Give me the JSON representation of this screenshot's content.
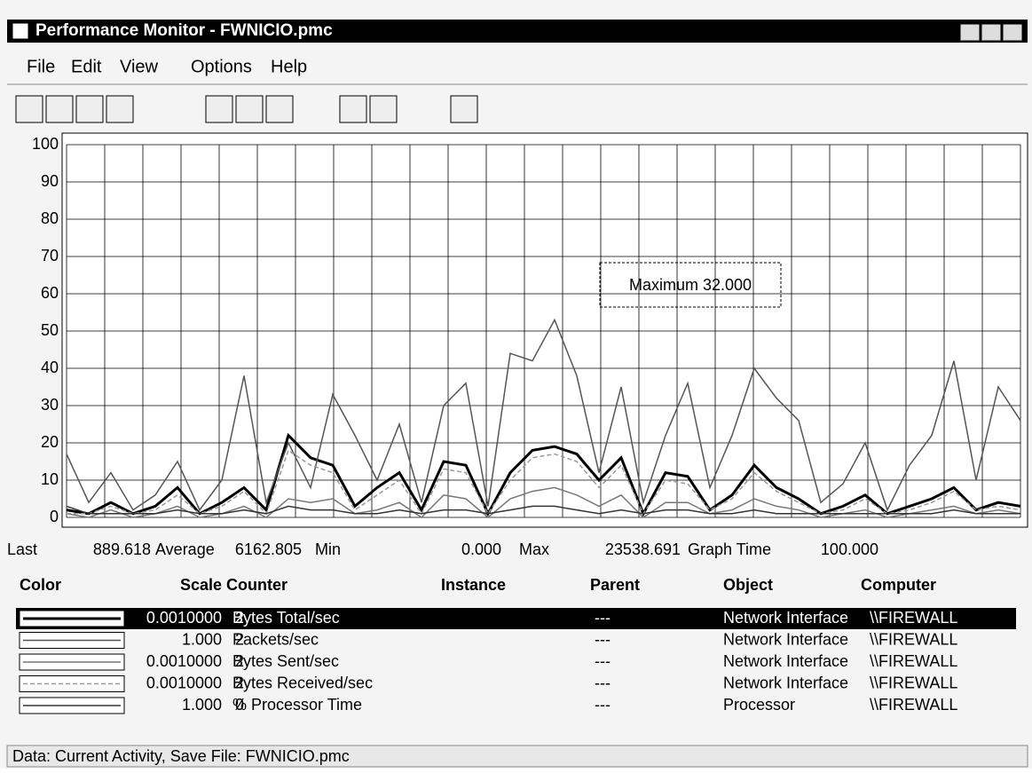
{
  "window": {
    "title": "Performance Monitor - FWNICIO.pmc"
  },
  "menu": [
    "File",
    "Edit",
    "View",
    "Options",
    "Help"
  ],
  "chart_data": {
    "type": "line",
    "ylim": [
      0,
      100
    ],
    "yticks": [
      0,
      10,
      20,
      30,
      40,
      50,
      60,
      70,
      80,
      90,
      100
    ],
    "grid": true,
    "annotation": "Maximum 32.000",
    "series": [
      {
        "name": "Bytes Total/sec",
        "color": "#000000",
        "values": [
          2,
          1,
          4,
          1,
          3,
          8,
          1,
          4,
          8,
          2,
          22,
          16,
          14,
          3,
          8,
          12,
          2,
          15,
          14,
          1,
          12,
          18,
          19,
          17,
          10,
          16,
          1,
          12,
          11,
          2,
          6,
          14,
          8,
          5,
          1,
          3,
          6,
          1,
          3,
          5,
          8,
          2,
          4,
          3
        ]
      },
      {
        "name": "Packets/sec",
        "color": "#555555",
        "values": [
          17,
          4,
          12,
          2,
          6,
          15,
          2,
          10,
          38,
          4,
          20,
          8,
          33,
          22,
          10,
          25,
          4,
          30,
          36,
          3,
          44,
          42,
          53,
          38,
          12,
          35,
          4,
          22,
          36,
          8,
          22,
          40,
          32,
          26,
          4,
          9,
          20,
          2,
          14,
          22,
          42,
          10,
          35,
          26
        ]
      },
      {
        "name": "Bytes Sent/sec",
        "color": "#777777",
        "values": [
          1,
          0,
          2,
          0,
          1,
          3,
          0,
          1,
          3,
          0,
          5,
          4,
          5,
          1,
          2,
          4,
          0,
          6,
          5,
          0,
          5,
          7,
          8,
          6,
          3,
          6,
          0,
          4,
          4,
          1,
          2,
          5,
          3,
          2,
          0,
          1,
          2,
          0,
          1,
          2,
          3,
          1,
          2,
          1
        ]
      },
      {
        "name": "Bytes Received/sec",
        "color": "#999999",
        "values": [
          1,
          1,
          3,
          1,
          2,
          6,
          1,
          3,
          7,
          1,
          18,
          14,
          12,
          2,
          6,
          10,
          1,
          13,
          12,
          1,
          10,
          16,
          17,
          15,
          8,
          14,
          1,
          10,
          9,
          2,
          5,
          12,
          7,
          4,
          1,
          2,
          5,
          1,
          2,
          4,
          7,
          2,
          3,
          2
        ]
      },
      {
        "name": "% Processor Time",
        "color": "#333333",
        "values": [
          3,
          1,
          1,
          1,
          1,
          2,
          1,
          1,
          2,
          1,
          3,
          2,
          2,
          1,
          1,
          2,
          1,
          2,
          2,
          1,
          2,
          3,
          3,
          2,
          1,
          2,
          1,
          2,
          2,
          1,
          1,
          2,
          1,
          1,
          1,
          1,
          1,
          1,
          1,
          1,
          2,
          1,
          1,
          1
        ]
      }
    ]
  },
  "stats": [
    "Last",
    "889.618",
    "Average",
    "6162.805",
    "Min",
    "0.000",
    "Max",
    "23538.691",
    "Graph Time",
    "100.000"
  ],
  "table": {
    "headers": [
      "Color",
      "Scale",
      "Counter",
      "Instance",
      "Parent",
      "Object",
      "Computer"
    ],
    "rows": [
      [
        "0.0010000",
        "2",
        "---",
        "Network Interface",
        "\\\\FIREWALL"
      ],
      [
        "1.000",
        "2",
        "---",
        "Network Interface",
        "\\\\FIREWALL"
      ],
      [
        "0.0010000",
        "2",
        "---",
        "Network Interface",
        "\\\\FIREWALL"
      ],
      [
        "0.0010000",
        "2",
        "---",
        "Network Interface",
        "\\\\FIREWALL"
      ],
      [
        "1.000",
        "0",
        "---",
        "Processor",
        "\\\\FIREWALL"
      ]
    ]
  },
  "status": "Data: Current Activity, Save File: FWNICIO.pmc"
}
